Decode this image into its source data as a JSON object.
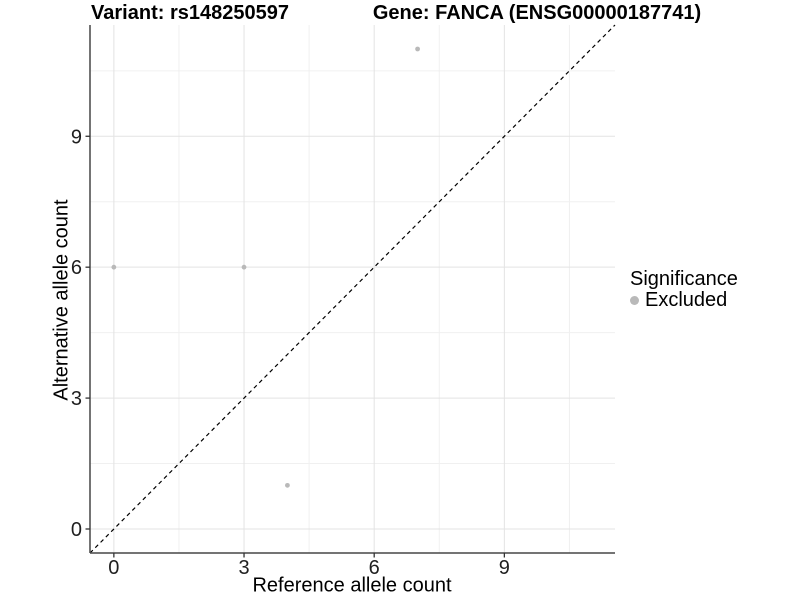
{
  "titles": {
    "left": "Variant: rs148250597",
    "right": "Gene: FANCA (ENSG00000187741)"
  },
  "legend": {
    "title": "Significance",
    "position": "right",
    "items": [
      {
        "label": "Excluded",
        "color": "#b9b9b9"
      }
    ]
  },
  "chart_data": {
    "type": "scatter",
    "xlabel": "Reference allele count",
    "ylabel": "Alternative allele count",
    "xlim": [
      -0.55,
      11.55
    ],
    "ylim": [
      -0.55,
      11.55
    ],
    "x_ticks": [
      0,
      3,
      6,
      9
    ],
    "y_ticks": [
      0,
      3,
      6,
      9
    ],
    "x_tick_labels": [
      "0",
      "3",
      "6",
      "9"
    ],
    "y_tick_labels": [
      "0",
      "3",
      "6",
      "9"
    ],
    "x_minor_ticks": [
      1.5,
      4.5,
      7.5,
      10.5
    ],
    "y_minor_ticks": [
      1.5,
      4.5,
      7.5,
      10.5
    ],
    "grid": true,
    "identity_line": {
      "slope": 1,
      "intercept": 0,
      "style": "dashed",
      "color": "#000000"
    },
    "series": [
      {
        "name": "Excluded",
        "color": "#b9b9b9",
        "points": [
          {
            "x": 0,
            "y": 6
          },
          {
            "x": 3,
            "y": 6
          },
          {
            "x": 4,
            "y": 1
          },
          {
            "x": 7,
            "y": 11
          }
        ]
      }
    ],
    "colors": {
      "major_grid": "#e3e3e3",
      "minor_grid": "#f0f0f0",
      "axis_line": "#464646",
      "tick_mark": "#333333",
      "tick_label": "#1f1f1f",
      "background": "#ffffff"
    }
  }
}
